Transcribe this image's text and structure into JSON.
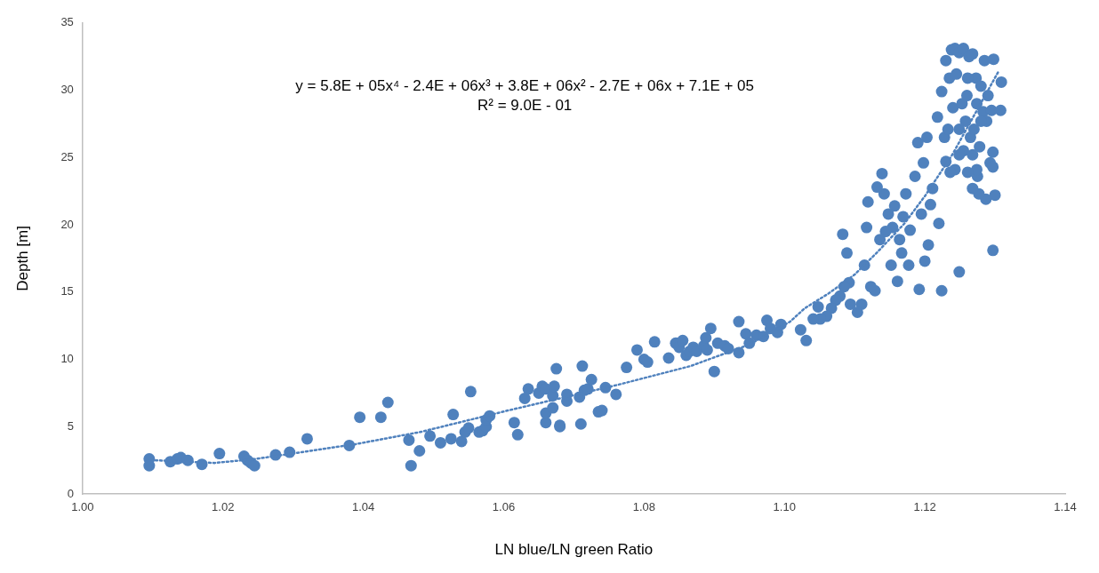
{
  "chart_data": {
    "type": "scatter",
    "xlabel": "LN blue/LN green Ratio",
    "ylabel": "Depth [m]",
    "annotations": [
      "y = 5.8E + 05x⁴ - 2.4E + 06x³ + 3.8E + 06x² - 2.7E + 06x + 7.1E + 05",
      "R² = 9.0E - 01"
    ],
    "xlim": [
      1.0,
      1.14
    ],
    "xticks": [
      {
        "value": 1.0,
        "label": "1.00"
      },
      {
        "value": 1.02,
        "label": "1.02"
      },
      {
        "value": 1.04,
        "label": "1.04"
      },
      {
        "value": 1.06,
        "label": "1.06"
      },
      {
        "value": 1.08,
        "label": "1.08"
      },
      {
        "value": 1.1,
        "label": "1.10"
      },
      {
        "value": 1.12,
        "label": "1.12"
      },
      {
        "value": 1.14,
        "label": "1.14"
      }
    ],
    "ylim": [
      0,
      35
    ],
    "yticks": [
      0,
      5,
      10,
      15,
      20,
      25,
      30,
      35
    ],
    "grid": false,
    "legend": false,
    "marker": "circle",
    "series": [
      {
        "type": "scatter",
        "color": "#4f81bd",
        "x": [
          1.0095,
          1.0095,
          1.0125,
          1.0135,
          1.014,
          1.015,
          1.017,
          1.0195,
          1.023,
          1.0235,
          1.024,
          1.0245,
          1.0275,
          1.0295,
          1.032,
          1.038,
          1.0395,
          1.0425,
          1.0435,
          1.0465,
          1.0468,
          1.048,
          1.0495,
          1.051,
          1.0525,
          1.0528,
          1.054,
          1.0545,
          1.055,
          1.0553,
          1.0565,
          1.057,
          1.0575,
          1.0575,
          1.058,
          1.0615,
          1.062,
          1.063,
          1.0635,
          1.065,
          1.0655,
          1.066,
          1.066,
          1.066,
          1.067,
          1.0672,
          1.067,
          1.0675,
          1.068,
          1.068,
          1.069,
          1.069,
          1.0708,
          1.071,
          1.0712,
          1.0715,
          1.072,
          1.0725,
          1.0735,
          1.074,
          1.0745,
          1.076,
          1.0775,
          1.079,
          1.08,
          1.0805,
          1.0815,
          1.0835,
          1.0845,
          1.085,
          1.0855,
          1.086,
          1.0865,
          1.087,
          1.0875,
          1.0885,
          1.0888,
          1.089,
          1.0895,
          1.09,
          1.0905,
          1.0915,
          1.092,
          1.0935,
          1.0935,
          1.0945,
          1.095,
          1.096,
          1.097,
          1.0975,
          1.098,
          1.099,
          1.0995,
          1.1224,
          1.123,
          1.1235,
          1.1238,
          1.124,
          1.1243,
          1.1245,
          1.1249,
          1.1253,
          1.1255,
          1.1258,
          1.126,
          1.1263,
          1.1265,
          1.1268,
          1.127,
          1.1273,
          1.1275,
          1.1278,
          1.128,
          1.1283,
          1.1285,
          1.1288,
          1.129,
          1.1293,
          1.1295,
          1.1298,
          1.1249,
          1.13,
          1.1297,
          1.1297,
          1.1297,
          1.1309,
          1.1308,
          1.1287,
          1.1277,
          1.1274,
          1.1268,
          1.1261,
          1.1255,
          1.1249,
          1.1243,
          1.1236,
          1.123,
          1.1228,
          1.1233,
          1.1249,
          1.1268,
          1.1274,
          1.128,
          1.1261,
          1.1218,
          1.1203,
          1.1198,
          1.1192,
          1.1186,
          1.119,
          1.122,
          1.1205,
          1.12,
          1.1211,
          1.1208,
          1.1195,
          1.1224,
          1.1177,
          1.1179,
          1.1173,
          1.1167,
          1.1169,
          1.1164,
          1.1161,
          1.1157,
          1.1154,
          1.1152,
          1.1148,
          1.1144,
          1.1142,
          1.1139,
          1.1136,
          1.1132,
          1.1129,
          1.1123,
          1.1119,
          1.1117,
          1.1114,
          1.111,
          1.1104,
          1.1094,
          1.1092,
          1.1089,
          1.1085,
          1.1083,
          1.1079,
          1.1073,
          1.1067,
          1.106,
          1.1051,
          1.1048,
          1.1041,
          1.1031,
          1.1023
        ],
        "values": [
          2.6,
          2.1,
          2.4,
          2.6,
          2.7,
          2.5,
          2.2,
          3.0,
          2.8,
          2.5,
          2.3,
          2.1,
          2.9,
          3.1,
          4.1,
          3.6,
          5.7,
          5.7,
          6.8,
          4.0,
          2.1,
          3.2,
          4.3,
          3.8,
          4.1,
          5.9,
          3.9,
          4.6,
          4.9,
          7.6,
          4.6,
          4.7,
          5.0,
          5.5,
          5.8,
          5.3,
          4.4,
          7.1,
          7.8,
          7.5,
          8.0,
          5.3,
          6.0,
          7.8,
          7.3,
          8.0,
          6.4,
          9.3,
          5.0,
          5.1,
          6.9,
          7.4,
          7.2,
          5.2,
          9.5,
          7.7,
          7.8,
          8.5,
          6.1,
          6.2,
          7.9,
          7.4,
          9.4,
          10.7,
          10.0,
          9.8,
          11.3,
          10.1,
          11.2,
          10.9,
          11.4,
          10.3,
          10.6,
          10.9,
          10.6,
          11.0,
          11.6,
          10.7,
          12.3,
          9.1,
          11.2,
          11.0,
          10.8,
          12.8,
          10.5,
          11.9,
          11.2,
          11.8,
          11.7,
          12.9,
          12.3,
          12.0,
          12.6,
          29.9,
          32.2,
          30.9,
          33.0,
          28.7,
          33.1,
          31.2,
          32.8,
          29.0,
          33.1,
          27.7,
          29.6,
          32.5,
          26.5,
          32.7,
          27.1,
          30.9,
          23.6,
          25.8,
          30.3,
          28.4,
          32.2,
          27.7,
          29.6,
          24.6,
          28.5,
          32.3,
          16.5,
          22.2,
          25.4,
          24.3,
          18.1,
          30.6,
          28.5,
          21.9,
          22.3,
          24.1,
          22.7,
          23.9,
          25.5,
          25.2,
          24.1,
          23.9,
          24.7,
          26.5,
          27.1,
          27.1,
          25.2,
          29.0,
          27.7,
          30.9,
          28.0,
          26.5,
          24.6,
          15.2,
          23.6,
          26.1,
          20.1,
          18.5,
          17.3,
          22.7,
          21.5,
          20.8,
          15.1,
          17.0,
          19.6,
          22.3,
          17.9,
          20.6,
          18.9,
          15.8,
          21.4,
          19.8,
          17.0,
          20.8,
          19.5,
          22.3,
          23.8,
          18.9,
          22.8,
          15.1,
          15.4,
          21.7,
          19.8,
          17.0,
          14.1,
          13.5,
          14.1,
          15.7,
          17.9,
          15.4,
          19.3,
          14.7,
          14.4,
          13.8,
          13.2,
          13.0,
          13.9,
          13.0,
          11.4,
          12.2
        ]
      },
      {
        "type": "line",
        "color": "#4f81bd",
        "line_style": "dotted",
        "marker": "none",
        "x": [
          1.0104,
          1.0188,
          1.0247,
          1.0389,
          1.0481,
          1.0606,
          1.0762,
          1.0866,
          1.095,
          1.1008,
          1.1029,
          1.1063,
          1.11,
          1.1133,
          1.1171,
          1.1201,
          1.1239,
          1.1305
        ],
        "values": [
          2.5,
          2.3,
          2.6,
          3.7,
          4.6,
          6.2,
          8.1,
          9.5,
          11.1,
          12.8,
          13.8,
          14.9,
          16.3,
          18.0,
          20.1,
          22.2,
          25.2,
          31.4
        ]
      }
    ]
  }
}
